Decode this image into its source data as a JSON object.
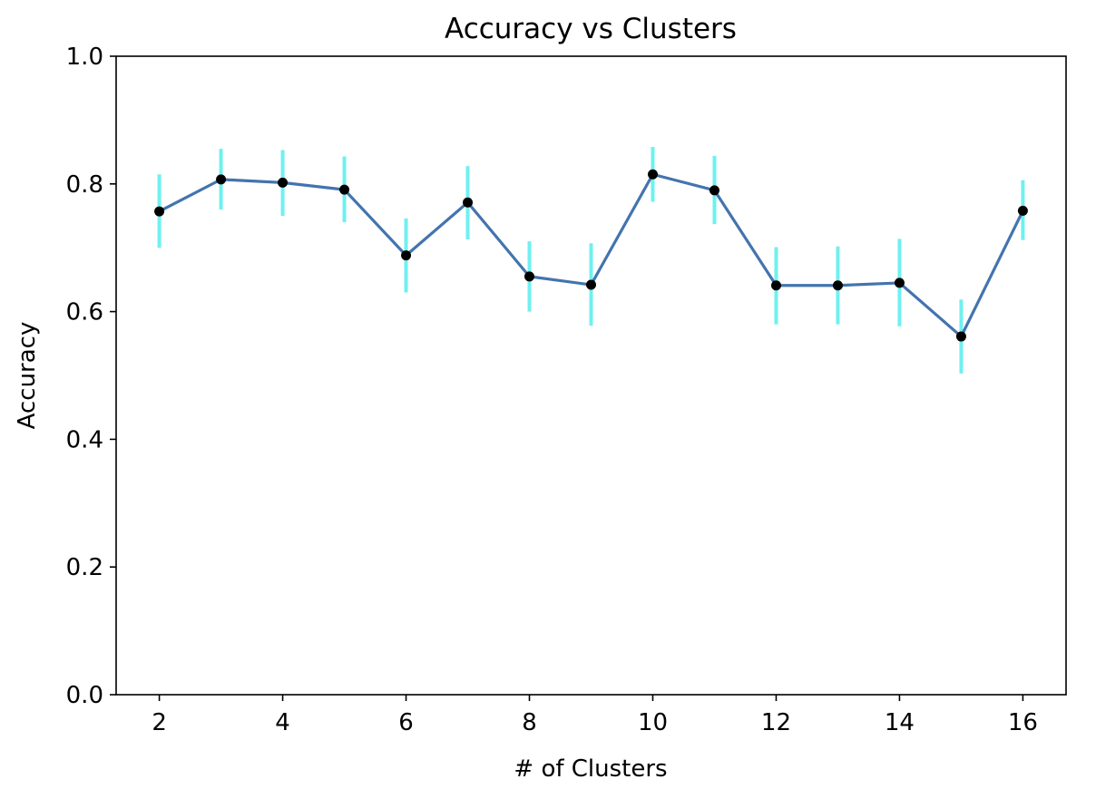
{
  "chart_data": {
    "type": "line",
    "title": "Accuracy vs Clusters",
    "xlabel": "# of Clusters",
    "ylabel": "Accuracy",
    "xlim": [
      1.3,
      16.7
    ],
    "ylim": [
      0.0,
      1.0
    ],
    "xticks": [
      2,
      4,
      6,
      8,
      10,
      12,
      14,
      16
    ],
    "yticks": [
      0.0,
      0.2,
      0.4,
      0.6,
      0.8,
      1.0
    ],
    "ytick_labels": [
      "0.0",
      "0.2",
      "0.4",
      "0.6",
      "0.8",
      "1.0"
    ],
    "grid": false,
    "legend": "none",
    "colors": {
      "line": "#4374ae",
      "errorbar": "#6ff0f0",
      "marker": "#000000",
      "axes": "#000000"
    },
    "series": [
      {
        "x": [
          2,
          3,
          4,
          5,
          6,
          7,
          8,
          9,
          10,
          11,
          12,
          13,
          14,
          15,
          16
        ],
        "y": [
          0.757,
          0.807,
          0.802,
          0.791,
          0.688,
          0.771,
          0.655,
          0.642,
          0.815,
          0.79,
          0.641,
          0.641,
          0.645,
          0.561,
          0.758
        ],
        "y_error_lower": [
          0.7,
          0.76,
          0.75,
          0.74,
          0.63,
          0.713,
          0.6,
          0.578,
          0.772,
          0.737,
          0.58,
          0.58,
          0.577,
          0.503,
          0.712
        ],
        "y_error_upper": [
          0.815,
          0.855,
          0.853,
          0.843,
          0.746,
          0.828,
          0.71,
          0.707,
          0.858,
          0.844,
          0.701,
          0.702,
          0.714,
          0.619,
          0.806
        ]
      }
    ]
  }
}
